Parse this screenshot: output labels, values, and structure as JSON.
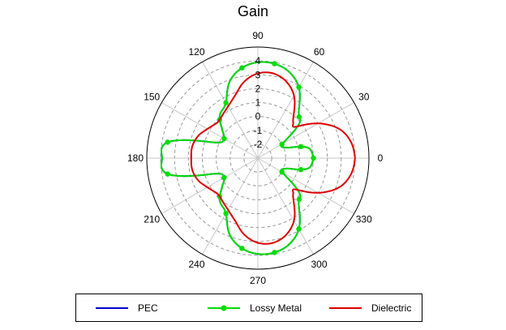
{
  "chart_data": {
    "type": "polar-line",
    "title": "Gain",
    "angle_ticks": [
      0,
      30,
      60,
      90,
      120,
      150,
      180,
      210,
      240,
      270,
      300,
      330
    ],
    "radial_ticks": [
      -2,
      -1,
      0,
      1,
      2,
      3,
      4
    ],
    "rlim": [
      -3,
      5
    ],
    "angle_tick_angles": [
      0,
      30,
      60,
      90,
      120,
      150,
      180,
      210,
      240,
      270,
      300,
      330
    ],
    "grid": true,
    "legend_position": "bottom",
    "series": [
      {
        "name": "PEC",
        "color": "#0000cc",
        "marker": "none",
        "angles_deg": [
          0,
          10,
          15,
          20,
          30,
          40,
          45,
          50,
          60,
          70,
          80,
          90,
          100,
          110,
          120,
          130,
          135,
          140,
          150,
          160,
          170,
          180,
          190,
          200,
          210,
          220,
          225,
          230,
          240,
          250,
          260,
          270,
          280,
          290,
          300,
          310,
          315,
          320,
          330,
          340,
          345,
          350,
          360
        ],
        "r": [
          1.0,
          0.8,
          0.2,
          -0.8,
          -1.0,
          0.9,
          1.2,
          1.6,
          2.9,
          3.6,
          3.9,
          3.9,
          3.6,
          2.9,
          1.6,
          1.2,
          0.9,
          0.4,
          -0.2,
          0.3,
          3.6,
          3.9,
          3.6,
          0.3,
          -0.2,
          0.4,
          0.9,
          1.2,
          1.6,
          2.9,
          3.6,
          3.9,
          3.9,
          3.6,
          2.9,
          1.6,
          1.2,
          0.9,
          -1.0,
          -0.8,
          0.2,
          0.8,
          1.0
        ]
      },
      {
        "name": "Lossy Metal",
        "color": "#00dd00",
        "marker": "circle",
        "angles_deg": [
          0,
          10,
          15,
          20,
          30,
          40,
          45,
          50,
          60,
          70,
          80,
          90,
          100,
          110,
          120,
          130,
          135,
          140,
          150,
          160,
          170,
          180,
          190,
          200,
          210,
          220,
          225,
          230,
          240,
          250,
          260,
          270,
          280,
          290,
          300,
          310,
          315,
          320,
          330,
          340,
          345,
          350,
          360
        ],
        "r": [
          1.0,
          0.8,
          0.2,
          -0.8,
          -1.0,
          0.9,
          1.2,
          1.6,
          2.9,
          3.6,
          3.9,
          3.9,
          3.6,
          2.9,
          1.6,
          1.2,
          0.9,
          0.4,
          -0.2,
          0.3,
          3.6,
          3.9,
          3.6,
          0.3,
          -0.2,
          0.4,
          0.9,
          1.2,
          1.6,
          2.9,
          3.6,
          3.9,
          3.9,
          3.6,
          2.9,
          1.6,
          1.2,
          0.9,
          -1.0,
          -0.8,
          0.2,
          0.8,
          1.0
        ]
      },
      {
        "name": "Dielectric",
        "color": "#dd0000",
        "marker": "none",
        "angles_deg": [
          0,
          10,
          20,
          30,
          40,
          45,
          50,
          60,
          70,
          80,
          90,
          100,
          110,
          120,
          130,
          135,
          140,
          150,
          160,
          170,
          180,
          190,
          200,
          210,
          220,
          225,
          230,
          240,
          250,
          260,
          270,
          280,
          290,
          300,
          310,
          315,
          320,
          330,
          340,
          350,
          360
        ],
        "r": [
          4.0,
          3.8,
          3.2,
          2.0,
          0.5,
          0.6,
          1.0,
          2.2,
          2.9,
          3.2,
          3.1,
          2.6,
          1.8,
          1.3,
          1.0,
          0.9,
          0.9,
          1.2,
          1.6,
          1.8,
          1.8,
          1.8,
          1.6,
          1.2,
          0.9,
          0.9,
          1.0,
          1.3,
          1.8,
          2.6,
          3.1,
          3.2,
          2.9,
          2.2,
          1.0,
          0.6,
          0.5,
          2.0,
          3.2,
          3.8,
          4.0
        ]
      }
    ]
  }
}
